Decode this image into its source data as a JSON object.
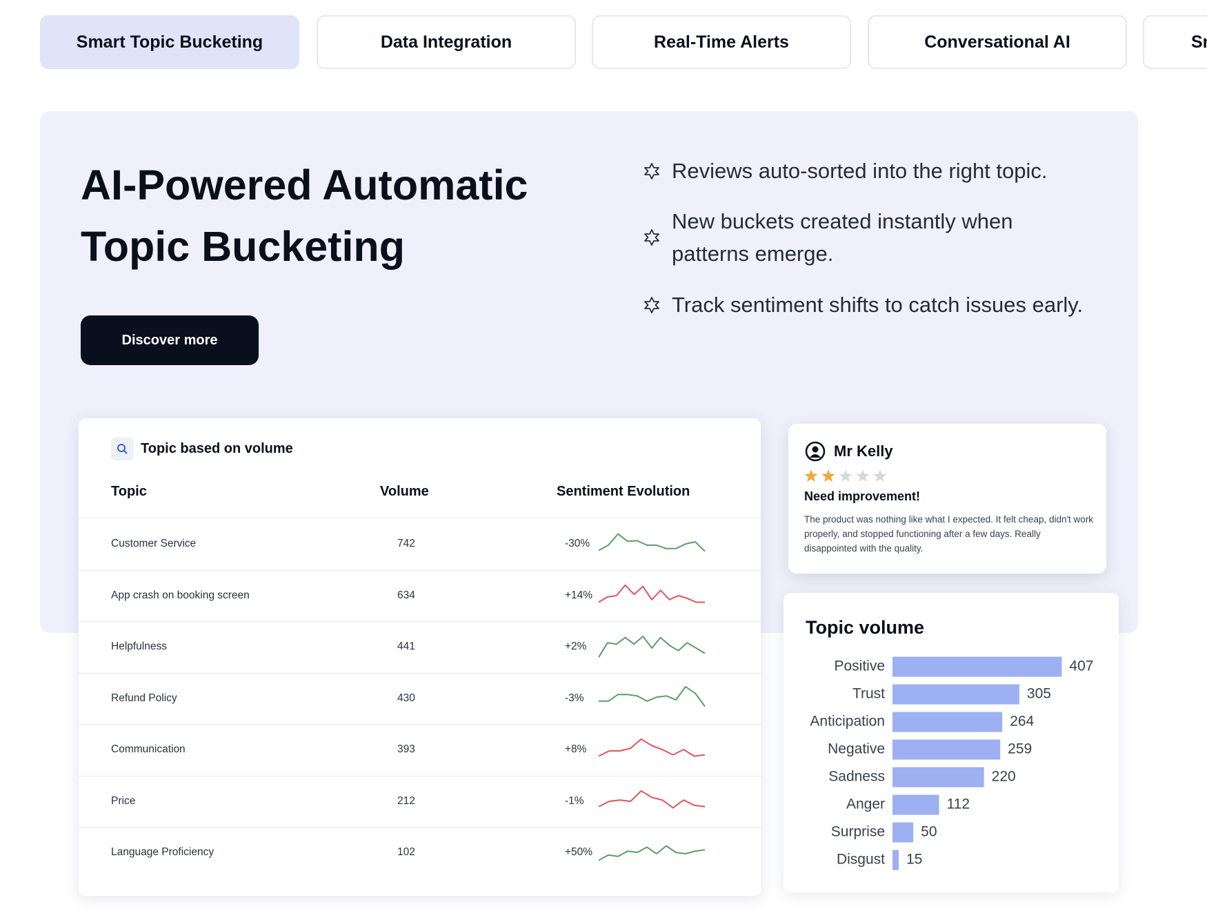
{
  "tabs": {
    "items": [
      "Smart Topic Bucketing",
      "Data Integration",
      "Real-Time Alerts",
      "Conversational AI",
      "Sm"
    ],
    "active": 0
  },
  "hero": {
    "title": "AI-Powered Automatic Topic Bucketing",
    "button": "Discover more",
    "bullets": [
      "Reviews auto-sorted into the right topic.",
      "New buckets created instantly when patterns emerge.",
      "Track sentiment shifts to catch issues early."
    ]
  },
  "table": {
    "title": "Topic based on volume",
    "columns": [
      "Topic",
      "Volume",
      "Sentiment Evolution"
    ],
    "rows": [
      {
        "topic": "Customer Service",
        "volume": 742,
        "change": "-30%",
        "color": "#5a9e68",
        "sparkline": [
          25,
          45,
          88,
          60,
          62,
          45,
          45,
          32,
          32,
          50,
          58,
          22
        ]
      },
      {
        "topic": "App crash on booking screen",
        "volume": 634,
        "change": "+14%",
        "color": "#e0535c",
        "sparkline": [
          25,
          45,
          50,
          90,
          55,
          85,
          35,
          70,
          35,
          50,
          40,
          25,
          25
        ]
      },
      {
        "topic": "Helpfulness",
        "volume": 441,
        "change": "+2%",
        "color": "#5a9e68",
        "sparkline": [
          10,
          65,
          60,
          85,
          60,
          90,
          45,
          85,
          55,
          35,
          65,
          45,
          25
        ]
      },
      {
        "topic": "Refund Policy",
        "volume": 430,
        "change": "-3%",
        "color": "#5a9e68",
        "sparkline": [
          40,
          40,
          65,
          65,
          60,
          40,
          55,
          60,
          45,
          95,
          70,
          20
        ]
      },
      {
        "topic": "Communication",
        "volume": 393,
        "change": "+8%",
        "color": "#e0535c",
        "sparkline": [
          25,
          45,
          45,
          55,
          90,
          65,
          50,
          30,
          50,
          25,
          30
        ]
      },
      {
        "topic": "Price",
        "volume": 212,
        "change": "-1%",
        "color": "#e0535c",
        "sparkline": [
          30,
          50,
          55,
          50,
          90,
          65,
          55,
          25,
          55,
          35,
          30
        ]
      },
      {
        "topic": "Language Proficiency",
        "volume": 102,
        "change": "+50%",
        "color": "#5a9e68",
        "sparkline": [
          20,
          40,
          35,
          55,
          50,
          70,
          45,
          75,
          50,
          45,
          55,
          60
        ]
      }
    ]
  },
  "review": {
    "name": "Mr Kelly",
    "rating": 2,
    "heading": "Need improvement!",
    "text": "The product was nothing like what I expected. It felt cheap, didn't work properly, and stopped functioning after a few days. Really disappointed with the quality."
  },
  "chart_data": {
    "type": "bar",
    "title": "Topic volume",
    "orientation": "horizontal",
    "color": "#9db0f2",
    "categories": [
      "Positive",
      "Trust",
      "Anticipation",
      "Negative",
      "Sadness",
      "Anger",
      "Surprise",
      "Disgust"
    ],
    "values": [
      407,
      305,
      264,
      259,
      220,
      112,
      50,
      15
    ]
  }
}
